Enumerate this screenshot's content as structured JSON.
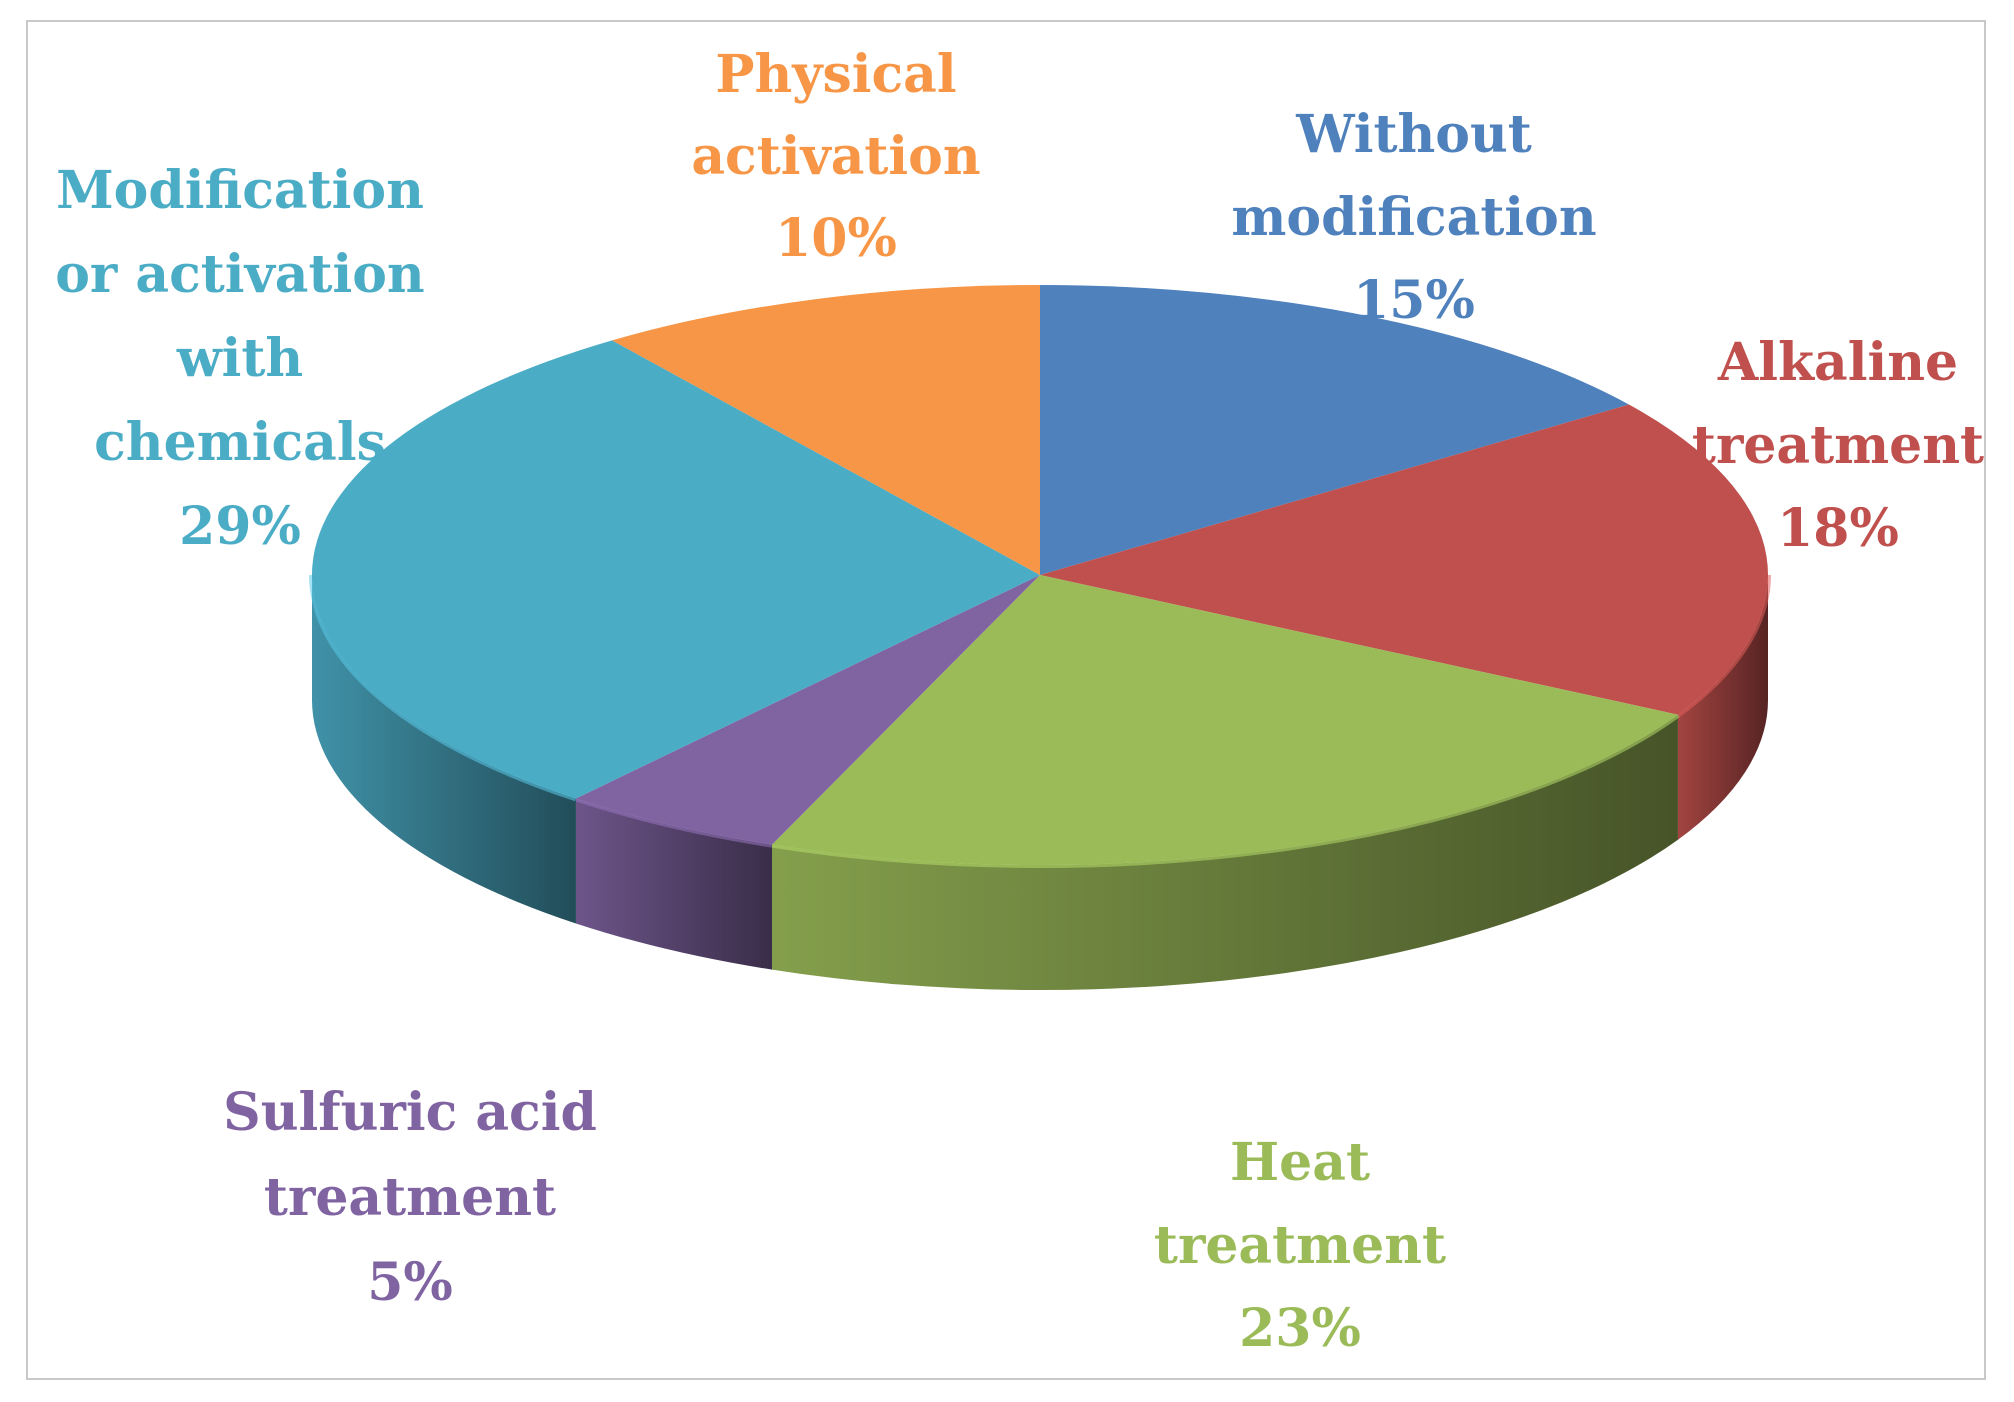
{
  "chart_data": {
    "type": "pie",
    "title": "",
    "style": "3d",
    "legend": "none",
    "slices": [
      {
        "label_lines": [
          "Without",
          "modification"
        ],
        "percent_label": "15%",
        "value": 15,
        "color": "#4f81bd"
      },
      {
        "label_lines": [
          "Alkaline",
          "treatment"
        ],
        "percent_label": "18%",
        "value": 18,
        "color": "#c0504d"
      },
      {
        "label_lines": [
          "Heat",
          "treatment"
        ],
        "percent_label": "23%",
        "value": 23,
        "color": "#9bbb59"
      },
      {
        "label_lines": [
          "Sulfuric acid",
          "treatment"
        ],
        "percent_label": "5%",
        "value": 5,
        "color": "#8064a2"
      },
      {
        "label_lines": [
          "Modification",
          "or activation",
          "with",
          "chemicals"
        ],
        "percent_label": "29%",
        "value": 29,
        "color": "#4bacc6"
      },
      {
        "label_lines": [
          "Physical",
          "activation"
        ],
        "percent_label": "10%",
        "value": 10,
        "color": "#f79646"
      }
    ]
  }
}
